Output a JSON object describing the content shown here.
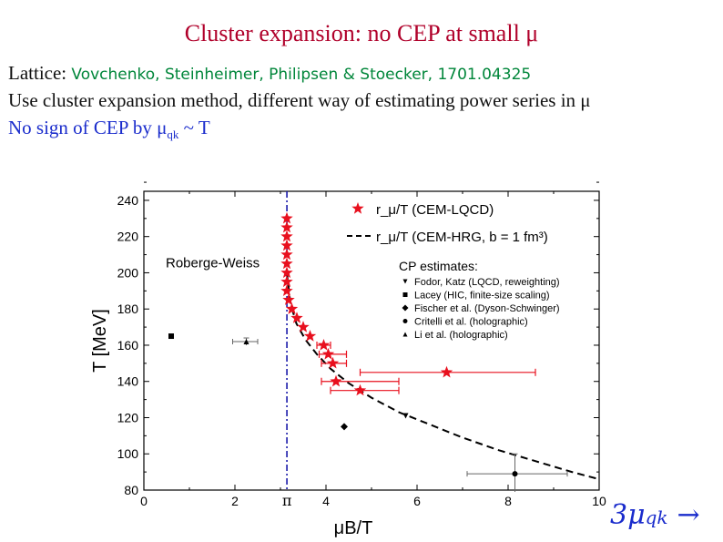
{
  "slide": {
    "title": "Cluster expansion: no CEP at small  μ",
    "line1_label": "Lattice: ",
    "line1_ref": "Vovchenko, Steinheimer, Philipsen & Stoecker, 1701.04325",
    "line2": "Use cluster expansion method, different way of estimating power series in μ",
    "line3_main": "No sign of CEP by μ",
    "line3_sub": "qk",
    "line3_tail": " ~ T",
    "math_main": "3μ",
    "math_sub": "qk",
    "math_arrow": "→"
  },
  "chart_data": {
    "type": "scatter",
    "xlabel": "μB/T",
    "ylabel": "T [MeV]",
    "xlim": [
      0,
      10
    ],
    "ylim": [
      80,
      245
    ],
    "xticks": [
      0,
      2,
      4,
      6,
      8,
      10
    ],
    "yticks": [
      80,
      100,
      120,
      140,
      160,
      180,
      200,
      220,
      240
    ],
    "pi_label": "π",
    "rw_label": "Roberge-Weiss",
    "legend": {
      "cem_lqcd": "r_μ/T (CEM-LQCD)",
      "cem_hrg": "r_μ/T (CEM-HRG, b = 1 fm³)",
      "cp_header": "CP estimates:",
      "fodor": "Fodor, Katz (LQCD, reweighting)",
      "lacey": "Lacey (HIC, finite-size scaling)",
      "fischer": "Fischer et al. (Dyson-Schwinger)",
      "critelli": "Critelli et al. (holographic)",
      "li": "Li et al. (holographic)"
    },
    "series": [
      {
        "name": "CEM-LQCD",
        "marker": "star",
        "color": "#e8101e",
        "points": [
          [
            3.14,
            230
          ],
          [
            3.14,
            225
          ],
          [
            3.14,
            220
          ],
          [
            3.14,
            215
          ],
          [
            3.14,
            210
          ],
          [
            3.14,
            205
          ],
          [
            3.14,
            200
          ],
          [
            3.14,
            195
          ],
          [
            3.14,
            190
          ],
          [
            3.18,
            185
          ],
          [
            3.25,
            180
          ],
          [
            3.36,
            175
          ],
          [
            3.5,
            170
          ],
          [
            3.65,
            165
          ],
          [
            3.95,
            160
          ],
          [
            4.05,
            155
          ],
          [
            4.15,
            150
          ],
          [
            4.22,
            140
          ],
          [
            4.75,
            135
          ],
          [
            6.65,
            145
          ]
        ],
        "xerr": [
          null,
          null,
          null,
          null,
          null,
          null,
          null,
          null,
          null,
          null,
          null,
          null,
          null,
          null,
          [
            3.8,
            4.1
          ],
          [
            3.85,
            4.45
          ],
          [
            3.9,
            4.45
          ],
          [
            3.9,
            5.6
          ],
          [
            4.1,
            5.6
          ],
          [
            4.75,
            8.6
          ]
        ]
      },
      {
        "name": "CEM-HRG",
        "type": "line",
        "style": "dashed",
        "color": "#000000",
        "x": [
          3.14,
          3.22,
          3.35,
          3.55,
          3.8,
          4.1,
          4.5,
          5.0,
          5.6,
          6.3,
          7.0,
          7.8,
          8.6,
          9.4,
          10.0
        ],
        "y": [
          200,
          183,
          172,
          163,
          155,
          147,
          139,
          131,
          123,
          116,
          109,
          102,
          96,
          90,
          86
        ]
      },
      {
        "name": "Fodor, Katz",
        "marker": "triangle-down",
        "x": [
          5.75
        ],
        "y": [
          121
        ]
      },
      {
        "name": "Lacey",
        "marker": "square",
        "x": [
          0.6
        ],
        "y": [
          165
        ]
      },
      {
        "name": "Fischer et al.",
        "marker": "diamond",
        "x": [
          4.4
        ],
        "y": [
          115
        ]
      },
      {
        "name": "Critelli et al.",
        "marker": "circle",
        "x": [
          8.15
        ],
        "y": [
          89
        ],
        "xerr": [
          7.1,
          9.3
        ],
        "yerr": [
          79,
          100
        ]
      },
      {
        "name": "Li et al.",
        "marker": "triangle-up",
        "x": [
          2.25
        ],
        "y": [
          162
        ],
        "xerr": [
          1.95,
          2.5
        ],
        "yerr": [
          160,
          164
        ]
      }
    ]
  }
}
